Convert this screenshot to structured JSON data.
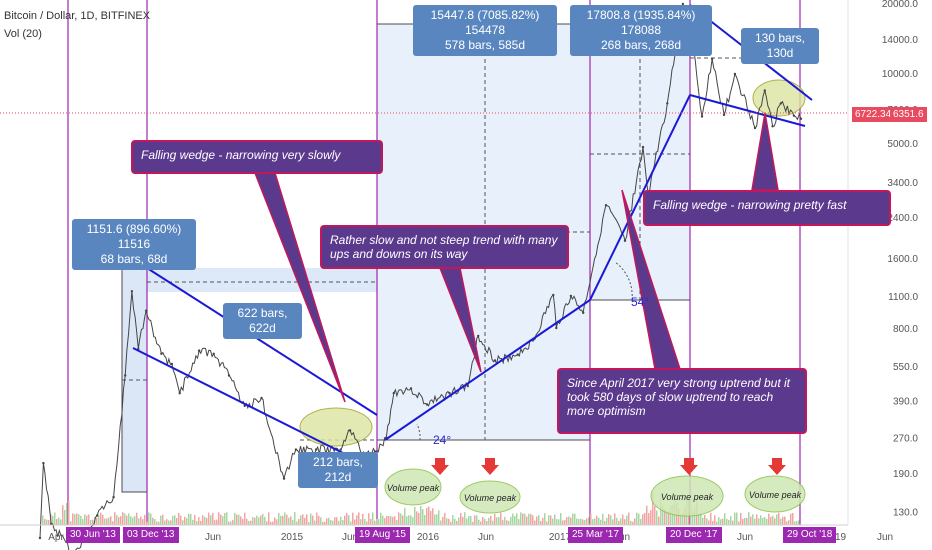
{
  "header": {
    "symbol": "Bitcoin / Dollar, 1D, BITFINEX",
    "volume": "Vol (20)"
  },
  "chart_data": {
    "type": "line",
    "scale": "log",
    "ylim": [
      100,
      20000
    ],
    "y_ticks": [
      20000,
      14000,
      10000,
      7000,
      5000,
      3400,
      2400,
      1600,
      1100,
      800,
      550,
      390,
      270,
      190,
      130
    ],
    "x_ticks": [
      "Apr",
      "Jun",
      "2015",
      "Jun",
      "2016",
      "Jun",
      "2017",
      "Jun",
      "Jun",
      "2019",
      "Jun"
    ],
    "date_badges": [
      "30 Jun '13",
      "03 Dec '13",
      "19 Aug '15",
      "25 Mar '17",
      "20 Dec '17",
      "29 Oct '18"
    ],
    "price_labels": [
      "6722.34%",
      "6351.6"
    ],
    "series": [
      {
        "values": [
          [
            "2013-04-01",
            100
          ],
          [
            "2013-04-10",
            210
          ],
          [
            "2013-05-01",
            115
          ],
          [
            "2013-07-01",
            85
          ],
          [
            "2013-09-01",
            125
          ],
          [
            "2013-10-15",
            150
          ],
          [
            "2013-11-15",
            500
          ],
          [
            "2013-12-03",
            1151
          ],
          [
            "2013-12-20",
            650
          ],
          [
            "2014-01-10",
            950
          ],
          [
            "2014-02-20",
            620
          ],
          [
            "2014-03-20",
            560
          ],
          [
            "2014-04-10",
            420
          ],
          [
            "2014-06-01",
            640
          ],
          [
            "2014-07-10",
            620
          ],
          [
            "2014-08-20",
            500
          ],
          [
            "2014-10-01",
            370
          ],
          [
            "2014-11-15",
            400
          ],
          [
            "2015-01-14",
            180
          ],
          [
            "2015-02-15",
            240
          ],
          [
            "2015-04-10",
            240
          ],
          [
            "2015-06-15",
            240
          ],
          [
            "2015-07-10",
            290
          ],
          [
            "2015-08-19",
            225
          ],
          [
            "2015-09-15",
            235
          ],
          [
            "2015-10-15",
            270
          ],
          [
            "2015-11-04",
            420
          ],
          [
            "2015-12-20",
            440
          ],
          [
            "2016-02-01",
            375
          ],
          [
            "2016-04-01",
            420
          ],
          [
            "2016-05-20",
            450
          ],
          [
            "2016-06-17",
            740
          ],
          [
            "2016-08-01",
            580
          ],
          [
            "2016-10-01",
            615
          ],
          [
            "2016-11-15",
            720
          ],
          [
            "2017-01-04",
            1110
          ],
          [
            "2017-01-12",
            800
          ],
          [
            "2017-02-20",
            1100
          ],
          [
            "2017-03-25",
            930
          ],
          [
            "2017-05-25",
            2700
          ],
          [
            "2017-07-15",
            1900
          ],
          [
            "2017-09-01",
            4800
          ],
          [
            "2017-09-15",
            3000
          ],
          [
            "2017-11-05",
            7400
          ],
          [
            "2017-12-17",
            19800
          ],
          [
            "2017-12-22",
            13000
          ],
          [
            "2018-01-06",
            17000
          ],
          [
            "2018-02-06",
            6500
          ],
          [
            "2018-03-05",
            11500
          ],
          [
            "2018-04-06",
            6600
          ],
          [
            "2018-05-05",
            9900
          ],
          [
            "2018-06-28",
            5800
          ],
          [
            "2018-07-24",
            8400
          ],
          [
            "2018-08-14",
            5900
          ],
          [
            "2018-09-05",
            7400
          ],
          [
            "2018-10-10",
            6550
          ],
          [
            "2018-10-29",
            6350
          ]
        ]
      }
    ]
  },
  "measures": [
    {
      "line1": "1151.6 (896.60%) 11516",
      "line2": "68 bars, 68d"
    },
    {
      "line1": "622 bars, 622d",
      "line2": ""
    },
    {
      "line1": "212 bars, 212d",
      "line2": ""
    },
    {
      "line1": "15447.8 (7085.82%) 154478",
      "line2": "578 bars, 585d"
    },
    {
      "line1": "17808.8 (1935.84%) 178088",
      "line2": "268 bars, 268d"
    },
    {
      "line1": "130 bars, 130d",
      "line2": ""
    }
  ],
  "callouts": [
    "Falling wedge - narrowing very slowly",
    "Rather slow and not steep trend with many ups and downs on its way",
    "Falling wedge - narrowing pretty fast",
    "Since April 2017 very strong uptrend but it took 580 days of slow uptrend to reach more optimism"
  ],
  "angles": [
    "24°",
    "54°"
  ],
  "volume_labels": [
    "Volume peak",
    "Volume peak",
    "Volume peak",
    "Volume peak"
  ],
  "colors": {
    "price_line": "#454545",
    "trend_line": "#1a1ad6",
    "measure_box": "#5a86c0",
    "callout": "#5b3a8e",
    "date_marker": "#9c27b0",
    "price_badge": "#e84a5f",
    "volume_up": "#a7d6a0",
    "volume_down": "#f2a3a3",
    "highlight_ellipse": "#dbe4a0"
  }
}
